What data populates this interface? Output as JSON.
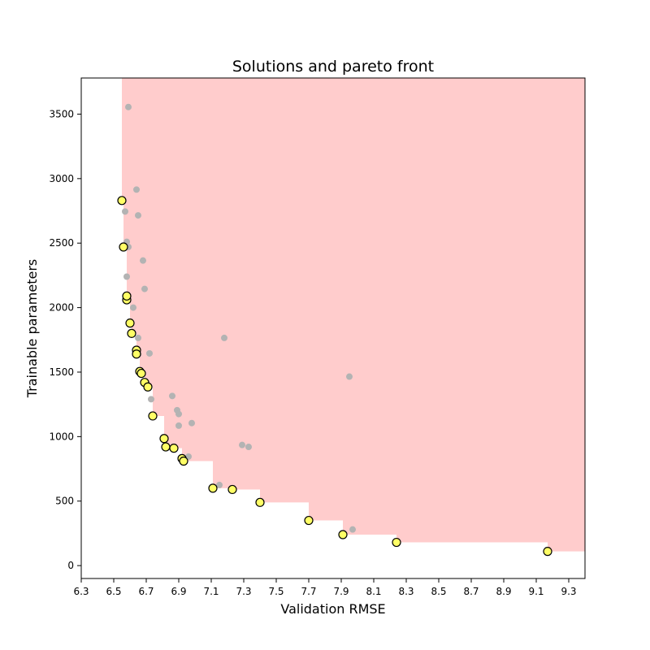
{
  "chart_data": {
    "type": "scatter",
    "title": "Solutions and pareto front",
    "xlabel": "Validation RMSE",
    "ylabel": "Trainable parameters",
    "xlim": [
      6.3,
      9.4
    ],
    "ylim": [
      -100,
      3780
    ],
    "xticks": [
      6.3,
      6.5,
      6.7,
      6.9,
      7.1,
      7.3,
      7.5,
      7.7,
      7.9,
      8.1,
      8.3,
      8.5,
      8.7,
      8.9,
      9.1,
      9.3
    ],
    "xtick_labels": [
      "6.3",
      "6.5",
      "6.7",
      "6.9",
      "7.1",
      "7.3",
      "7.5",
      "7.7",
      "7.9",
      "8.1",
      "8.3",
      "8.5",
      "8.7",
      "8.9",
      "9.1",
      "9.3"
    ],
    "yticks": [
      0,
      500,
      1000,
      1500,
      2000,
      2500,
      3000,
      3500
    ],
    "ytick_labels": [
      "0",
      "500",
      "1000",
      "1500",
      "2000",
      "2500",
      "3000",
      "3500"
    ],
    "grid": false,
    "colors": {
      "dominated_region": "#ffcccc",
      "solutions": "#b3b3b3",
      "pareto_fill": "#ffff66",
      "pareto_edge": "#000000"
    },
    "series": [
      {
        "values": [
          [
            6.59,
            3555
          ],
          [
            6.64,
            2915
          ],
          [
            6.57,
            2745
          ],
          [
            6.65,
            2715
          ],
          [
            6.58,
            2510
          ],
          [
            6.59,
            2470
          ],
          [
            6.68,
            2365
          ],
          [
            6.58,
            2240
          ],
          [
            6.69,
            2145
          ],
          [
            6.62,
            2000
          ],
          [
            6.65,
            1765
          ],
          [
            7.18,
            1765
          ],
          [
            6.72,
            1645
          ],
          [
            6.65,
            1640
          ],
          [
            7.95,
            1465
          ],
          [
            6.7,
            1420
          ],
          [
            6.73,
            1290
          ],
          [
            6.86,
            1315
          ],
          [
            6.89,
            1205
          ],
          [
            6.9,
            1175
          ],
          [
            6.98,
            1105
          ],
          [
            6.9,
            1085
          ],
          [
            7.29,
            935
          ],
          [
            7.33,
            920
          ],
          [
            6.96,
            845
          ],
          [
            7.15,
            625
          ],
          [
            7.97,
            280
          ]
        ]
      },
      {
        "values": [
          [
            6.55,
            2830
          ],
          [
            6.56,
            2470
          ],
          [
            6.58,
            2060
          ],
          [
            6.58,
            2090
          ],
          [
            6.6,
            1880
          ],
          [
            6.61,
            1800
          ],
          [
            6.64,
            1670
          ],
          [
            6.64,
            1640
          ],
          [
            6.66,
            1505
          ],
          [
            6.67,
            1490
          ],
          [
            6.69,
            1420
          ],
          [
            6.71,
            1385
          ],
          [
            6.74,
            1160
          ],
          [
            6.81,
            985
          ],
          [
            6.82,
            920
          ],
          [
            6.87,
            910
          ],
          [
            6.92,
            830
          ],
          [
            6.93,
            810
          ],
          [
            7.11,
            600
          ],
          [
            7.23,
            590
          ],
          [
            7.4,
            490
          ],
          [
            7.7,
            350
          ],
          [
            7.91,
            240
          ],
          [
            8.24,
            180
          ],
          [
            9.17,
            110
          ]
        ]
      }
    ]
  }
}
